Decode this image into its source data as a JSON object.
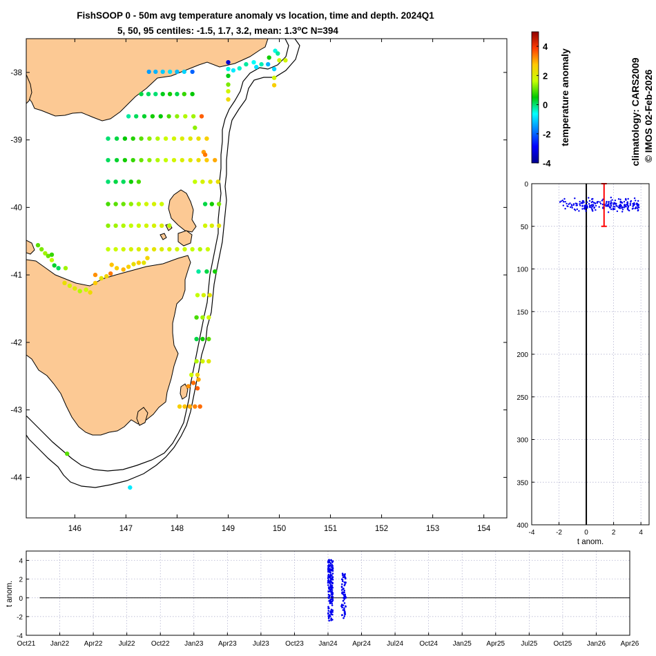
{
  "title": {
    "line1": "FishSOOP 0 - 50m avg temperature anomaly vs location, time and depth. 2024Q1",
    "line2_prefix": "5, 50, 95 centiles: -1.5, 1.7, 3.2, mean: 1.3",
    "line2_deg": "o",
    "line2_suffix": "C N=394"
  },
  "credits": {
    "climatology": "climatology: CARS2009",
    "copyright": "© IMOS 02-Feb-2026"
  },
  "colors": {
    "land": "#fcc994",
    "points_blue": "#0000ee",
    "error_bar": "#ff0000",
    "grid": "#a8a8c8"
  },
  "chart_data": [
    {
      "id": "map",
      "type": "scatter",
      "xlim": [
        145.05,
        154.45
      ],
      "ylim": [
        -44.6,
        -37.5
      ],
      "xticks": [
        146,
        147,
        148,
        149,
        150,
        151,
        152,
        153,
        154
      ],
      "yticks": [
        -38,
        -39,
        -40,
        -41,
        -42,
        -43,
        -44
      ],
      "color_variable": "temperature anomaly",
      "clim": [
        -4,
        5
      ],
      "rows": [
        {
          "lat": -37.99,
          "lon": [
            147.45,
            147.58,
            147.72,
            147.86,
            148.0,
            148.14,
            148.3
          ],
          "anom": [
            -1.5,
            -1.3,
            -1.1,
            -0.9,
            -1.2,
            -1.0,
            -2.0
          ]
        },
        {
          "lat": -38.32,
          "lon": [
            147.3,
            147.44,
            147.58,
            147.72,
            147.86,
            148.0,
            148.14,
            148.3
          ],
          "anom": [
            0.2,
            0.1,
            0.0,
            0.4,
            0.6,
            0.2,
            0.8,
            0.5
          ]
        },
        {
          "lat": -38.65,
          "lon": [
            147.05,
            147.2,
            147.36,
            147.52,
            147.68,
            147.84,
            148.0,
            148.16,
            148.32,
            148.48
          ],
          "anom": [
            -0.2,
            0.1,
            0.3,
            0.6,
            0.5,
            0.9,
            1.3,
            1.5,
            1.4,
            3.6
          ]
        },
        {
          "lat": -38.98,
          "lon": [
            146.65,
            146.82,
            146.98,
            147.14,
            147.3,
            147.46,
            147.62,
            147.78,
            147.94,
            148.1,
            148.26,
            148.42,
            148.58
          ],
          "anom": [
            0.0,
            0.2,
            0.5,
            0.7,
            1.0,
            1.3,
            1.5,
            1.7,
            1.8,
            2.0,
            2.1,
            2.3,
            2.6
          ]
        },
        {
          "lat": -39.3,
          "lon": [
            146.65,
            146.82,
            146.98,
            147.14,
            147.3,
            147.46,
            147.62,
            147.78,
            147.94,
            148.1,
            148.26,
            148.42,
            148.58,
            148.74
          ],
          "anom": [
            0.1,
            0.3,
            0.6,
            0.8,
            1.1,
            1.3,
            1.5,
            1.6,
            1.8,
            2.0,
            2.1,
            2.3,
            2.7,
            3.0
          ]
        },
        {
          "lat": -39.62,
          "lon": [
            146.65,
            146.8,
            146.95,
            147.1,
            147.25,
            148.35,
            148.5,
            148.65,
            148.8
          ],
          "anom": [
            0.0,
            0.2,
            0.1,
            0.6,
            0.9,
            1.6,
            1.9,
            2.1,
            2.3
          ]
        },
        {
          "lat": -39.95,
          "lon": [
            146.65,
            146.8,
            146.95,
            147.1,
            147.25,
            147.4,
            147.55,
            147.7,
            148.55,
            148.68,
            148.82
          ],
          "anom": [
            0.9,
            1.0,
            1.1,
            1.3,
            1.5,
            1.8,
            1.9,
            1.7,
            0.2,
            0.6,
            1.2
          ]
        },
        {
          "lat": -40.27,
          "lon": [
            146.65,
            146.8,
            146.95,
            147.1,
            147.25,
            147.4,
            147.55,
            147.7,
            147.85,
            148.55,
            148.68,
            148.82
          ],
          "anom": [
            1.3,
            1.4,
            1.5,
            1.6,
            1.7,
            1.8,
            1.9,
            2.0,
            1.5,
            1.8,
            2.0,
            2.2
          ]
        },
        {
          "lat": -40.62,
          "lon": [
            146.65,
            146.8,
            146.95,
            147.1,
            147.25,
            147.4,
            147.55,
            147.7,
            147.85,
            148.0,
            148.15,
            148.3,
            148.45,
            148.6
          ],
          "anom": [
            1.6,
            1.7,
            1.8,
            1.9,
            2.0,
            2.1,
            2.2,
            2.0,
            1.9,
            1.8,
            1.7,
            1.6,
            1.5,
            1.7
          ]
        },
        {
          "lat": -40.95,
          "lon": [
            148.42,
            148.58,
            148.74
          ],
          "anom": [
            -0.2,
            0.2,
            0.6
          ]
        },
        {
          "lat": -41.3,
          "lon": [
            148.4,
            148.52,
            148.64
          ],
          "anom": [
            1.6,
            1.9,
            2.2
          ]
        },
        {
          "lat": -41.63,
          "lon": [
            148.38,
            148.5,
            148.62
          ],
          "anom": [
            0.9,
            1.4,
            1.8
          ]
        },
        {
          "lat": -41.95,
          "lon": [
            148.38,
            148.5,
            148.62
          ],
          "anom": [
            0.2,
            0.6,
            1.0
          ]
        },
        {
          "lat": -42.28,
          "lon": [
            148.38,
            148.5,
            148.62
          ],
          "anom": [
            1.5,
            1.8,
            2.1
          ]
        },
        {
          "lat": -42.95,
          "lon": [
            148.05,
            148.15,
            148.25,
            148.35,
            148.45
          ],
          "anom": [
            2.6,
            2.8,
            3.0,
            3.3,
            3.5
          ]
        }
      ],
      "scatter": [
        {
          "lon": 149.0,
          "lat": -37.85,
          "anom": -3.3
        },
        {
          "lon": 149.0,
          "lat": -37.95,
          "anom": -0.5
        },
        {
          "lon": 149.0,
          "lat": -38.05,
          "anom": 0.4
        },
        {
          "lon": 149.0,
          "lat": -38.18,
          "anom": 1.2
        },
        {
          "lon": 149.0,
          "lat": -38.28,
          "anom": 1.8
        },
        {
          "lon": 149.0,
          "lat": -38.4,
          "anom": 2.4
        },
        {
          "lon": 149.1,
          "lat": -37.97,
          "anom": -0.8
        },
        {
          "lon": 149.22,
          "lat": -37.94,
          "anom": -0.4
        },
        {
          "lon": 149.35,
          "lat": -37.88,
          "anom": -0.2
        },
        {
          "lon": 149.5,
          "lat": -37.85,
          "anom": -0.6
        },
        {
          "lon": 149.65,
          "lat": -37.88,
          "anom": -0.3
        },
        {
          "lon": 149.55,
          "lat": -37.92,
          "anom": -0.9
        },
        {
          "lon": 149.8,
          "lat": -37.78,
          "anom": 0.6
        },
        {
          "lon": 149.92,
          "lat": -37.68,
          "anom": -0.5
        },
        {
          "lon": 149.97,
          "lat": -37.72,
          "anom": -0.2
        },
        {
          "lon": 149.9,
          "lat": -37.95,
          "anom": -1.0
        },
        {
          "lon": 149.9,
          "lat": -38.08,
          "anom": 1.8
        },
        {
          "lon": 149.9,
          "lat": -38.19,
          "anom": 2.6
        },
        {
          "lon": 150.0,
          "lat": -37.82,
          "anom": 1.7
        },
        {
          "lon": 150.12,
          "lat": -37.82,
          "anom": 1.8
        },
        {
          "lon": 149.78,
          "lat": -37.88,
          "anom": -1.3
        },
        {
          "lon": 148.35,
          "lat": -38.82,
          "anom": 1.3
        },
        {
          "lon": 148.52,
          "lat": -39.18,
          "anom": 3.1
        },
        {
          "lon": 148.55,
          "lat": -39.22,
          "anom": 3.4
        },
        {
          "lon": 148.28,
          "lat": -42.48,
          "anom": 1.7
        },
        {
          "lon": 148.4,
          "lat": -42.48,
          "anom": 2.4
        },
        {
          "lon": 148.22,
          "lat": -42.65,
          "anom": 3.2
        },
        {
          "lon": 148.32,
          "lat": -42.6,
          "anom": 3.5
        },
        {
          "lon": 148.42,
          "lat": -42.55,
          "anom": 3.0
        },
        {
          "lon": 148.4,
          "lat": -42.68,
          "anom": 3.6
        },
        {
          "lon": 145.28,
          "lat": -40.56,
          "anom": 1.0
        },
        {
          "lon": 145.35,
          "lat": -40.62,
          "anom": 1.2
        },
        {
          "lon": 145.42,
          "lat": -40.68,
          "anom": 1.4
        },
        {
          "lon": 145.48,
          "lat": -40.72,
          "anom": 1.1
        },
        {
          "lon": 145.55,
          "lat": -40.78,
          "anom": 1.6
        },
        {
          "lon": 145.6,
          "lat": -40.86,
          "anom": 0.3
        },
        {
          "lon": 145.68,
          "lat": -40.9,
          "anom": 0.1
        },
        {
          "lon": 145.82,
          "lat": -40.9,
          "anom": 1.4
        },
        {
          "lon": 145.55,
          "lat": -40.7,
          "anom": 0.8
        },
        {
          "lon": 145.8,
          "lat": -41.12,
          "anom": 2.3
        },
        {
          "lon": 145.9,
          "lat": -41.16,
          "anom": 1.9
        },
        {
          "lon": 146.0,
          "lat": -41.2,
          "anom": 2.1
        },
        {
          "lon": 146.1,
          "lat": -41.24,
          "anom": 1.5
        },
        {
          "lon": 146.22,
          "lat": -41.22,
          "anom": 1.7
        },
        {
          "lon": 146.3,
          "lat": -41.26,
          "anom": 2.4
        },
        {
          "lon": 146.4,
          "lat": -41.12,
          "anom": 2.7
        },
        {
          "lon": 146.4,
          "lat": -41.0,
          "anom": 3.2
        },
        {
          "lon": 146.52,
          "lat": -41.05,
          "anom": 2.2
        },
        {
          "lon": 146.62,
          "lat": -41.02,
          "anom": 2.5
        },
        {
          "lon": 146.7,
          "lat": -40.98,
          "anom": 3.4
        },
        {
          "lon": 146.72,
          "lat": -40.85,
          "anom": 2.8
        },
        {
          "lon": 146.82,
          "lat": -40.9,
          "anom": 2.6
        },
        {
          "lon": 146.95,
          "lat": -40.92,
          "anom": 2.9
        },
        {
          "lon": 147.05,
          "lat": -40.88,
          "anom": 2.6
        },
        {
          "lon": 147.15,
          "lat": -40.84,
          "anom": 2.3
        },
        {
          "lon": 147.25,
          "lat": -40.82,
          "anom": 2.7
        },
        {
          "lon": 147.35,
          "lat": -40.82,
          "anom": 2.2
        },
        {
          "lon": 147.42,
          "lat": -40.75,
          "anom": 2.5
        },
        {
          "lon": 145.85,
          "lat": -43.65,
          "anom": 1.0
        },
        {
          "lon": 147.08,
          "lat": -44.15,
          "anom": -0.8
        }
      ]
    },
    {
      "id": "colorbar",
      "type": "heatmap",
      "label": "temperature anomaly",
      "range": [
        -4,
        5
      ],
      "ticks": [
        "4",
        "2",
        "0",
        "-2",
        "-4"
      ],
      "tick_values": [
        4,
        2,
        0,
        -2,
        -4
      ]
    },
    {
      "id": "depth_profile",
      "type": "scatter",
      "xlabel": "t anom.",
      "xlim": [
        -4,
        4.6
      ],
      "ylim": [
        0,
        400
      ],
      "xticks": [
        "-4",
        "-2",
        "0",
        "2",
        "4"
      ],
      "xtick_values": [
        -4,
        -2,
        0,
        2,
        4
      ],
      "yticks": [
        "0",
        "50",
        "100",
        "150",
        "200",
        "250",
        "300",
        "350",
        "400"
      ],
      "ytick_values": [
        0,
        50,
        100,
        150,
        200,
        250,
        300,
        350,
        400
      ],
      "mean": 1.3,
      "depth_range": [
        0,
        50
      ],
      "cluster": {
        "depth_center": 25,
        "depth_spread": 7,
        "anom_min": -2.0,
        "anom_max": 3.9,
        "count": 230
      }
    },
    {
      "id": "time_series",
      "type": "scatter",
      "ylabel": "t anom.",
      "ylim": [
        -4,
        5
      ],
      "yticks": [
        "4",
        "2",
        "0",
        "-2",
        "-4"
      ],
      "ytick_values": [
        4,
        2,
        0,
        -2,
        -4
      ],
      "xticks": [
        "Oct21",
        "Jan22",
        "Apr22",
        "Jul22",
        "Oct22",
        "Jan23",
        "Apr23",
        "Jul23",
        "Oct23",
        "Jan24",
        "Apr24",
        "Jul24",
        "Oct24",
        "Jan25",
        "Apr25",
        "Jul25",
        "Oct25",
        "Jan26",
        "Apr26"
      ],
      "clusters": [
        {
          "time_index_start": 9.0,
          "time_index_end": 9.15,
          "anom_min": -2.5,
          "anom_max": 4.2,
          "count": 170
        },
        {
          "time_index_start": 9.4,
          "time_index_end": 9.53,
          "anom_min": -2.2,
          "anom_max": 2.6,
          "count": 65
        }
      ]
    }
  ]
}
